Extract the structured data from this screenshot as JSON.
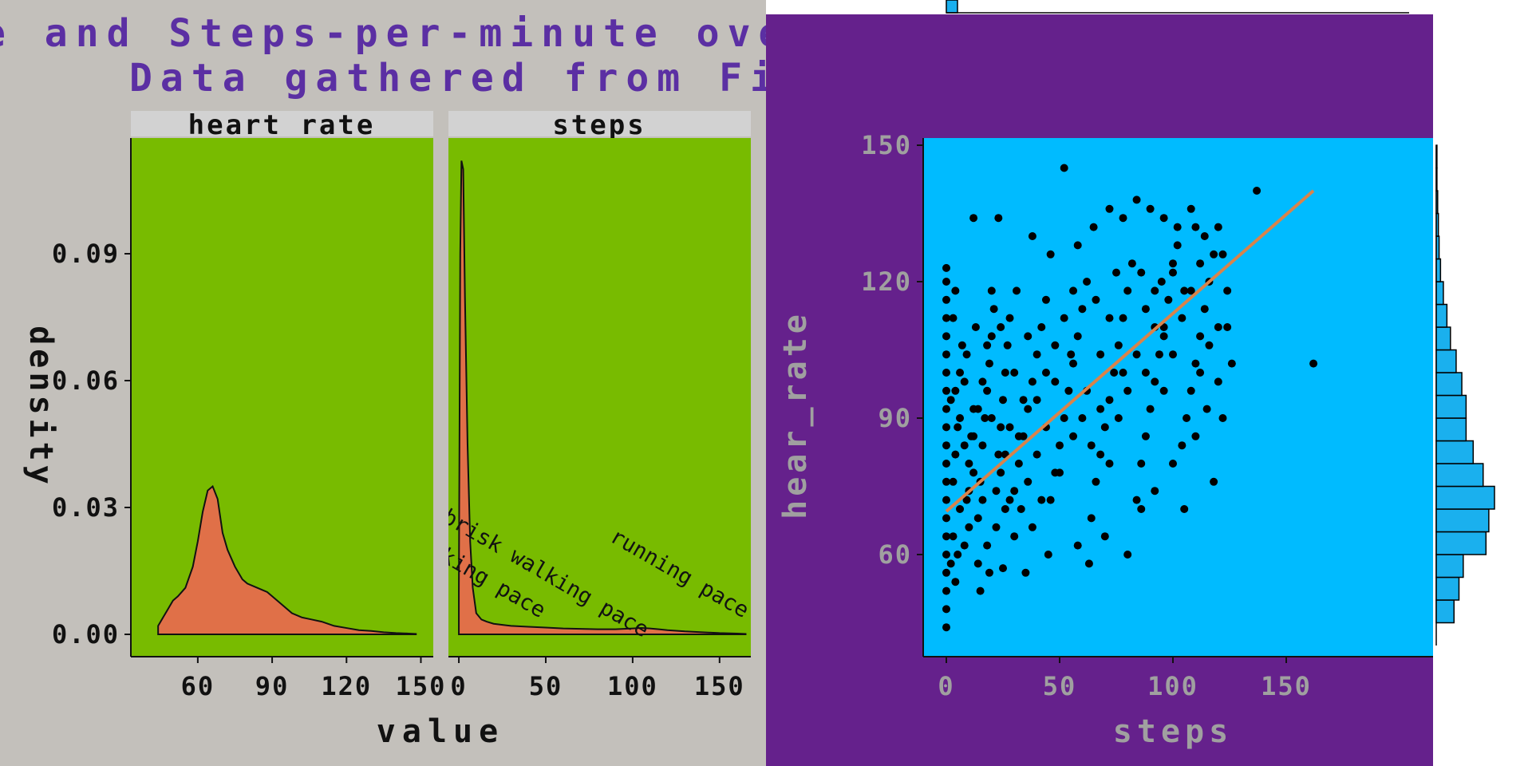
{
  "title": {
    "line1": "e and Steps-per-minute ove",
    "line2": "Data gathered from Fit"
  },
  "colors": {
    "page_bg": "#c3c0bb",
    "title": "#5b2fa3",
    "facet_strip": "#d2d2d2",
    "facet_panel": "#78bb00",
    "density_fill": "#e07048",
    "right_bg": "#65218c",
    "scatter_panel": "#00bbff",
    "trend_line": "#d9834a",
    "hist_fill": "#1ab0ee",
    "right_axis_text": "#a0a0a0"
  },
  "chart_data": [
    {
      "type": "area",
      "facets": [
        "heart rate",
        "steps"
      ],
      "xlabel": "value",
      "ylabel": "density",
      "yticks": [
        "0.00",
        "0.03",
        "0.06",
        "0.09"
      ],
      "ylim": [
        0,
        0.117
      ],
      "panels": [
        {
          "name": "heart rate",
          "xlim": [
            33,
            155
          ],
          "xticks": [
            "60",
            "90",
            "120",
            "150"
          ],
          "x": [
            44,
            46,
            48,
            50,
            52,
            55,
            58,
            60,
            62,
            64,
            66,
            68,
            70,
            72,
            75,
            78,
            80,
            84,
            88,
            90,
            94,
            98,
            102,
            106,
            110,
            115,
            120,
            125,
            130,
            135,
            140,
            145,
            148
          ],
          "y": [
            0.002,
            0.004,
            0.006,
            0.008,
            0.009,
            0.011,
            0.016,
            0.022,
            0.029,
            0.034,
            0.035,
            0.032,
            0.024,
            0.02,
            0.016,
            0.013,
            0.012,
            0.011,
            0.01,
            0.009,
            0.007,
            0.005,
            0.004,
            0.0035,
            0.003,
            0.002,
            0.0015,
            0.001,
            0.0008,
            0.0005,
            0.0003,
            0.0002,
            0.0001
          ]
        },
        {
          "name": "steps",
          "xlim": [
            -6,
            168
          ],
          "xticks": [
            "0",
            "50",
            "100",
            "150"
          ],
          "x": [
            0,
            0.8,
            1.5,
            2.5,
            3.5,
            5,
            6.5,
            8,
            10,
            13,
            16,
            20,
            30,
            40,
            50,
            60,
            70,
            80,
            90,
            100,
            105,
            110,
            115,
            120,
            130,
            140,
            150,
            160,
            165
          ],
          "y": [
            0.01,
            0.09,
            0.112,
            0.11,
            0.08,
            0.045,
            0.022,
            0.011,
            0.005,
            0.0035,
            0.003,
            0.0025,
            0.002,
            0.0018,
            0.0016,
            0.0014,
            0.0013,
            0.0012,
            0.0012,
            0.0014,
            0.0015,
            0.0014,
            0.0012,
            0.001,
            0.0007,
            0.0005,
            0.0003,
            0.0002,
            0.0001
          ]
        }
      ],
      "annotations": [
        {
          "text": "walking pace",
          "x": 8,
          "y": 0.013
        },
        {
          "text": "brisk walking pace",
          "x": 48,
          "y": 0.013
        },
        {
          "text": "running pace",
          "x": 125,
          "y": 0.013
        }
      ]
    },
    {
      "type": "scatter",
      "xlabel": "steps",
      "ylabel": "hear_rate",
      "xlim": [
        -12,
        168
      ],
      "ylim": [
        40,
        151
      ],
      "xticks": [
        0,
        50,
        100,
        150
      ],
      "yticks": [
        60,
        90,
        120,
        150
      ],
      "trend": {
        "x": [
          0,
          162
        ],
        "y": [
          69.5,
          140
        ]
      },
      "points": [
        [
          0,
          44
        ],
        [
          0,
          48
        ],
        [
          0,
          52
        ],
        [
          0,
          56
        ],
        [
          0,
          60
        ],
        [
          0,
          64
        ],
        [
          0,
          68
        ],
        [
          0,
          72
        ],
        [
          0,
          76
        ],
        [
          0,
          80
        ],
        [
          0,
          84
        ],
        [
          0,
          88
        ],
        [
          0,
          92
        ],
        [
          0,
          96
        ],
        [
          0,
          100
        ],
        [
          0,
          104
        ],
        [
          0,
          108
        ],
        [
          0,
          112
        ],
        [
          0,
          116
        ],
        [
          0,
          120
        ],
        [
          0,
          123
        ],
        [
          2,
          58
        ],
        [
          3,
          64
        ],
        [
          4,
          54
        ],
        [
          5,
          60
        ],
        [
          6,
          70
        ],
        [
          3,
          76
        ],
        [
          4,
          82
        ],
        [
          5,
          88
        ],
        [
          2,
          94
        ],
        [
          6,
          100
        ],
        [
          7,
          106
        ],
        [
          3,
          112
        ],
        [
          4,
          118
        ],
        [
          8,
          62
        ],
        [
          9,
          72
        ],
        [
          10,
          80
        ],
        [
          11,
          86
        ],
        [
          12,
          92
        ],
        [
          8,
          98
        ],
        [
          9,
          104
        ],
        [
          13,
          110
        ],
        [
          14,
          68
        ],
        [
          15,
          76
        ],
        [
          16,
          84
        ],
        [
          17,
          90
        ],
        [
          18,
          96
        ],
        [
          19,
          102
        ],
        [
          20,
          108
        ],
        [
          21,
          114
        ],
        [
          22,
          74
        ],
        [
          23,
          82
        ],
        [
          24,
          88
        ],
        [
          25,
          94
        ],
        [
          26,
          100
        ],
        [
          27,
          106
        ],
        [
          14,
          58
        ],
        [
          18,
          62
        ],
        [
          22,
          66
        ],
        [
          26,
          70
        ],
        [
          30,
          74
        ],
        [
          32,
          80
        ],
        [
          34,
          86
        ],
        [
          36,
          92
        ],
        [
          38,
          98
        ],
        [
          40,
          104
        ],
        [
          42,
          110
        ],
        [
          44,
          116
        ],
        [
          28,
          112
        ],
        [
          31,
          118
        ],
        [
          15,
          52
        ],
        [
          19,
          56
        ],
        [
          25,
          57
        ],
        [
          46,
          72
        ],
        [
          48,
          78
        ],
        [
          50,
          84
        ],
        [
          52,
          90
        ],
        [
          54,
          96
        ],
        [
          56,
          102
        ],
        [
          58,
          108
        ],
        [
          60,
          114
        ],
        [
          62,
          120
        ],
        [
          64,
          68
        ],
        [
          66,
          76
        ],
        [
          68,
          82
        ],
        [
          70,
          88
        ],
        [
          72,
          94
        ],
        [
          74,
          100
        ],
        [
          76,
          106
        ],
        [
          78,
          112
        ],
        [
          80,
          118
        ],
        [
          82,
          124
        ],
        [
          84,
          72
        ],
        [
          86,
          80
        ],
        [
          88,
          86
        ],
        [
          90,
          92
        ],
        [
          92,
          98
        ],
        [
          94,
          104
        ],
        [
          96,
          110
        ],
        [
          98,
          116
        ],
        [
          100,
          122
        ],
        [
          102,
          128
        ],
        [
          104,
          84
        ],
        [
          106,
          90
        ],
        [
          108,
          96
        ],
        [
          110,
          102
        ],
        [
          112,
          108
        ],
        [
          114,
          114
        ],
        [
          116,
          120
        ],
        [
          118,
          126
        ],
        [
          120,
          132
        ],
        [
          12,
          134
        ],
        [
          23,
          134
        ],
        [
          38,
          130
        ],
        [
          46,
          126
        ],
        [
          52,
          145
        ],
        [
          58,
          128
        ],
        [
          65,
          132
        ],
        [
          72,
          136
        ],
        [
          78,
          134
        ],
        [
          84,
          138
        ],
        [
          90,
          136
        ],
        [
          96,
          134
        ],
        [
          102,
          132
        ],
        [
          108,
          136
        ],
        [
          114,
          130
        ],
        [
          122,
          126
        ],
        [
          124,
          118
        ],
        [
          126,
          102
        ],
        [
          122,
          90
        ],
        [
          118,
          76
        ],
        [
          105,
          70
        ],
        [
          92,
          74
        ],
        [
          80,
          60
        ],
        [
          63,
          58
        ],
        [
          58,
          62
        ],
        [
          35,
          56
        ],
        [
          45,
          60
        ],
        [
          70,
          64
        ],
        [
          86,
          70
        ],
        [
          100,
          80
        ],
        [
          110,
          86
        ],
        [
          115,
          92
        ],
        [
          120,
          110
        ],
        [
          105,
          118
        ],
        [
          95,
          120
        ],
        [
          88,
          114
        ],
        [
          75,
          122
        ],
        [
          66,
          116
        ],
        [
          55,
          104
        ],
        [
          48,
          98
        ],
        [
          44,
          88
        ],
        [
          40,
          82
        ],
        [
          36,
          76
        ],
        [
          33,
          70
        ],
        [
          30,
          64
        ],
        [
          137,
          140
        ],
        [
          162,
          102
        ],
        [
          112,
          124
        ],
        [
          110,
          132
        ],
        [
          100,
          124
        ],
        [
          96,
          108
        ],
        [
          92,
          118
        ],
        [
          86,
          122
        ],
        [
          78,
          100
        ],
        [
          72,
          112
        ],
        [
          68,
          104
        ],
        [
          62,
          96
        ],
        [
          56,
          86
        ],
        [
          50,
          78
        ],
        [
          42,
          72
        ],
        [
          38,
          66
        ],
        [
          34,
          94
        ],
        [
          30,
          100
        ],
        [
          28,
          88
        ],
        [
          26,
          82
        ],
        [
          24,
          110
        ],
        [
          20,
          118
        ],
        [
          18,
          106
        ],
        [
          16,
          98
        ],
        [
          14,
          92
        ],
        [
          12,
          86
        ],
        [
          10,
          74
        ],
        [
          8,
          84
        ],
        [
          6,
          90
        ],
        [
          4,
          96
        ],
        [
          10,
          66
        ],
        [
          12,
          78
        ],
        [
          16,
          72
        ],
        [
          20,
          90
        ],
        [
          24,
          78
        ],
        [
          28,
          72
        ],
        [
          32,
          86
        ],
        [
          36,
          108
        ],
        [
          40,
          94
        ],
        [
          44,
          100
        ],
        [
          48,
          106
        ],
        [
          52,
          112
        ],
        [
          56,
          118
        ],
        [
          60,
          90
        ],
        [
          64,
          84
        ],
        [
          68,
          92
        ],
        [
          72,
          80
        ],
        [
          76,
          90
        ],
        [
          80,
          96
        ],
        [
          84,
          104
        ],
        [
          88,
          100
        ],
        [
          92,
          110
        ],
        [
          96,
          96
        ],
        [
          100,
          104
        ],
        [
          104,
          112
        ],
        [
          108,
          118
        ],
        [
          112,
          100
        ],
        [
          116,
          106
        ],
        [
          120,
          98
        ],
        [
          124,
          110
        ]
      ],
      "histogram": {
        "orientation": "horizontal",
        "bin_edges": [
          40,
          45,
          50,
          55,
          60,
          65,
          70,
          75,
          80,
          85,
          90,
          95,
          100,
          105,
          110,
          115,
          120,
          125,
          130,
          135,
          140,
          145,
          150
        ],
        "counts": [
          0,
          25,
          32,
          38,
          70,
          74,
          82,
          66,
          52,
          42,
          42,
          36,
          28,
          20,
          15,
          10,
          6,
          4,
          3,
          2,
          1,
          1
        ]
      }
    }
  ]
}
